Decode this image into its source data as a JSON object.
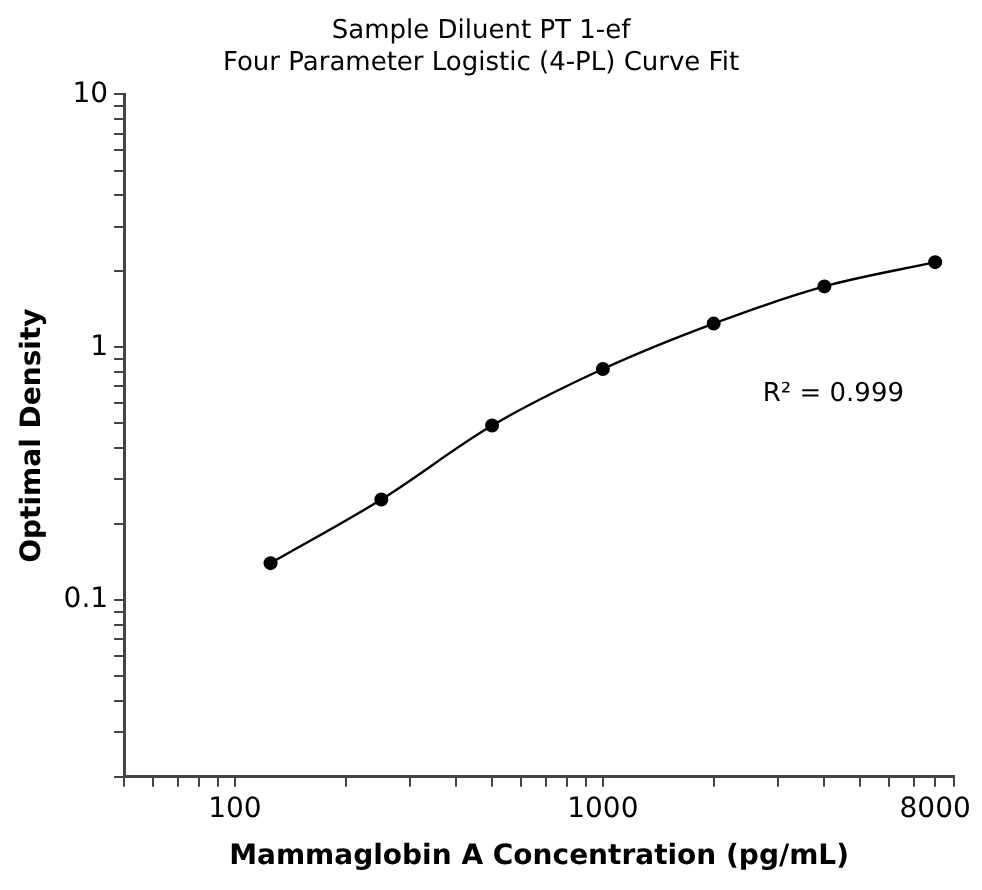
{
  "chart_data": {
    "type": "line",
    "title": "Sample Diluent PT 1-ef",
    "subtitle": "Four Parameter Logistic (4-PL) Curve Fit",
    "xlabel": "Mammaglobin A Concentration (pg/mL)",
    "ylabel": "Optimal Density",
    "x": [
      125,
      250,
      500,
      1000,
      2000,
      4000,
      8000
    ],
    "series": [
      {
        "color": "#000000",
        "values": [
          0.14,
          0.25,
          0.49,
          0.82,
          1.24,
          1.74,
          2.17
        ]
      }
    ],
    "log": "xy",
    "xlim": [
      50,
      9000
    ],
    "ylim": [
      0.02,
      10
    ],
    "xticks": [
      {
        "value": 50,
        "label": null
      },
      {
        "value": 60,
        "label": null
      },
      {
        "value": 70,
        "label": null
      },
      {
        "value": 80,
        "label": null
      },
      {
        "value": 90,
        "label": null
      },
      100,
      {
        "value": 200,
        "label": null
      },
      {
        "value": 300,
        "label": null
      },
      {
        "value": 400,
        "label": null
      },
      {
        "value": 500,
        "label": null
      },
      {
        "value": 600,
        "label": null
      },
      {
        "value": 700,
        "label": null
      },
      {
        "value": 800,
        "label": null
      },
      {
        "value": 900,
        "label": null
      },
      1000,
      {
        "value": 2000,
        "label": null
      },
      {
        "value": 3000,
        "label": null
      },
      {
        "value": 4000,
        "label": null
      },
      {
        "value": 5000,
        "label": null
      },
      {
        "value": 6000,
        "label": null
      },
      {
        "value": 7000,
        "label": null
      },
      8000,
      {
        "value": 9000,
        "label": null
      }
    ],
    "yticks": [
      {
        "value": 0.02,
        "label": null
      },
      {
        "value": 0.03,
        "label": null
      },
      {
        "value": 0.04,
        "label": null
      },
      {
        "value": 0.05,
        "label": null
      },
      {
        "value": 0.06,
        "label": null
      },
      {
        "value": 0.07,
        "label": null
      },
      {
        "value": 0.08,
        "label": null
      },
      {
        "value": 0.09,
        "label": null
      },
      0.1,
      {
        "value": 0.2,
        "label": null
      },
      {
        "value": 0.3,
        "label": null
      },
      {
        "value": 0.4,
        "label": null
      },
      {
        "value": 0.5,
        "label": null
      },
      {
        "value": 0.6,
        "label": null
      },
      {
        "value": 0.7,
        "label": null
      },
      {
        "value": 0.8,
        "label": null
      },
      {
        "value": 0.9,
        "label": null
      },
      1,
      {
        "value": 2,
        "label": null
      },
      {
        "value": 3,
        "label": null
      },
      {
        "value": 4,
        "label": null
      },
      {
        "value": 5,
        "label": null
      },
      {
        "value": 6,
        "label": null
      },
      {
        "value": 7,
        "label": null
      },
      {
        "value": 8,
        "label": null
      },
      {
        "value": 9,
        "label": null
      },
      10
    ],
    "annotations": [
      "R² = 0.999"
    ],
    "grid": false,
    "legend": false,
    "marker": "circle",
    "line_style": "solid"
  }
}
